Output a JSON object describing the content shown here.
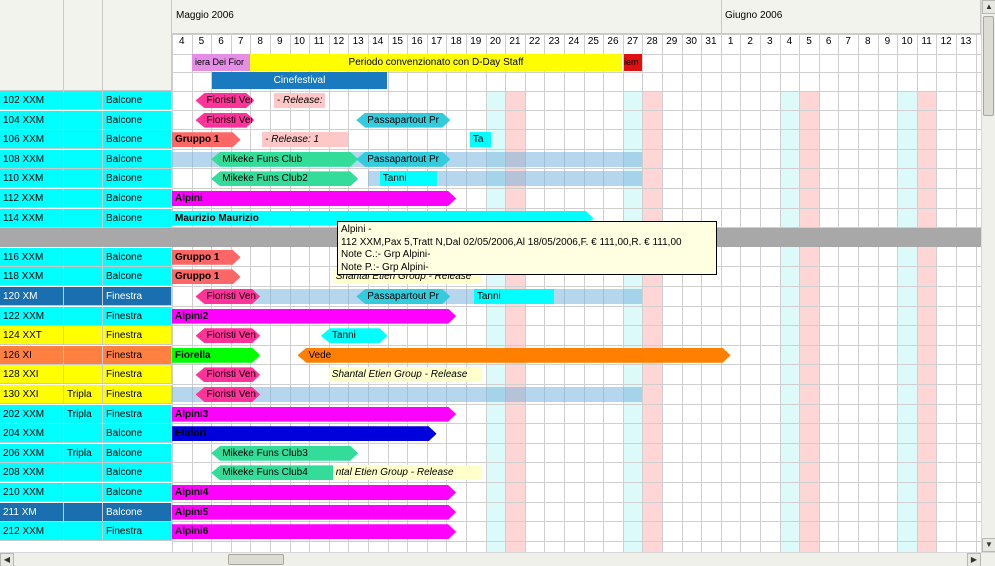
{
  "header": {
    "month1": "Maggio 2006",
    "month2": "Giugno 2006"
  },
  "days": [
    "4",
    "5",
    "6",
    "7",
    "8",
    "9",
    "10",
    "11",
    "12",
    "13",
    "14",
    "15",
    "16",
    "17",
    "18",
    "19",
    "20",
    "21",
    "22",
    "23",
    "24",
    "25",
    "26",
    "27",
    "28",
    "29",
    "30",
    "31",
    "1",
    "2",
    "3",
    "4",
    "5",
    "6",
    "7",
    "8",
    "9",
    "10",
    "11",
    "12",
    "13"
  ],
  "events": {
    "fiera": "iera Dei Fior",
    "periodo": "Periodo convenzionato con D-Day Staff",
    "red": "iem",
    "cinefestival": "Cinefestival"
  },
  "rows": [
    {
      "room": "102 XXM",
      "type": "",
      "view": "Balcone",
      "color": "#00ffff"
    },
    {
      "room": "104 XXM",
      "type": "",
      "view": "Balcone",
      "color": "#00ffff"
    },
    {
      "room": "106 XXM",
      "type": "",
      "view": "Balcone",
      "color": "#00ffff"
    },
    {
      "room": "108 XXM",
      "type": "",
      "view": "Balcone",
      "color": "#00ffff"
    },
    {
      "room": "110 XXM",
      "type": "",
      "view": "Balcone",
      "color": "#00ffff"
    },
    {
      "room": "112 XXM",
      "type": "",
      "view": "Balcone",
      "color": "#00ffff"
    },
    {
      "room": "114 XXM",
      "type": "",
      "view": "Balcone",
      "color": "#00ffff"
    },
    {
      "room": "",
      "type": "",
      "view": "",
      "color": "#a8a8a8"
    },
    {
      "room": "116 XXM",
      "type": "",
      "view": "Balcone",
      "color": "#00ffff"
    },
    {
      "room": "118 XXM",
      "type": "",
      "view": "Balcone",
      "color": "#00ffff"
    },
    {
      "room": "120 XM",
      "type": "",
      "view": "Finestra",
      "color": "#1a6fb0"
    },
    {
      "room": "122 XXM",
      "type": "",
      "view": "Finestra",
      "color": "#00ffff"
    },
    {
      "room": "124 XXT",
      "type": "",
      "view": "Finestra",
      "color": "#ffff00"
    },
    {
      "room": "126 XI",
      "type": "",
      "view": "Finestra",
      "color": "#ff8040"
    },
    {
      "room": "128 XXI",
      "type": "",
      "view": "Finestra",
      "color": "#ffff00"
    },
    {
      "room": "130 XXI",
      "type": "Tripla",
      "view": "Finestra",
      "color": "#ffff00"
    },
    {
      "room": "202 XXM",
      "type": "Tripla",
      "view": "Finestra",
      "color": "#00ffff"
    },
    {
      "room": "204 XXM",
      "type": "",
      "view": "Balcone",
      "color": "#00ffff"
    },
    {
      "room": "206 XXM",
      "type": "Tripla",
      "view": "Balcone",
      "color": "#00ffff"
    },
    {
      "room": "208 XXM",
      "type": "",
      "view": "Balcone",
      "color": "#00ffff"
    },
    {
      "room": "210 XXM",
      "type": "",
      "view": "Balcone",
      "color": "#00ffff"
    },
    {
      "room": "211 XM",
      "type": "",
      "view": "Balcone",
      "color": "#1a6fb0"
    },
    {
      "room": "212 XXM",
      "type": "",
      "view": "Finestra",
      "color": "#00ffff"
    }
  ],
  "bars": [
    {
      "row": 0,
      "label": "Fioristi Ven",
      "color": "#ff3399",
      "style": "tag"
    },
    {
      "row": 0,
      "label": "- Release: 1",
      "color": "#ffc8c8",
      "style": "ghost"
    },
    {
      "row": 1,
      "label": "Fioristi Ven",
      "color": "#ff3399",
      "style": "tag"
    },
    {
      "row": 1,
      "label": "Passapartout Pr",
      "color": "#33ccdd",
      "style": "tag"
    },
    {
      "row": 2,
      "label": "Gruppo 1",
      "color": "#ff6666",
      "style": "bold"
    },
    {
      "row": 2,
      "label": "- Release: 1",
      "color": "#ffc8c8",
      "style": "ghost"
    },
    {
      "row": 2,
      "label": "Ta",
      "color": "#00ffff",
      "style": "plain"
    },
    {
      "row": 3,
      "label": "Mikeke Funs Club",
      "color": "#33dd99",
      "style": "tag"
    },
    {
      "row": 3,
      "label": "Passapartout Pr",
      "color": "#33ccdd",
      "style": "tag"
    },
    {
      "row": 4,
      "label": "Mikeke Funs Club2",
      "color": "#33dd99",
      "style": "tag"
    },
    {
      "row": 4,
      "label": "Tanni",
      "color": "#00ffff",
      "style": "plain"
    },
    {
      "row": 5,
      "label": "Alpini",
      "color": "#ff00ff",
      "style": "bold"
    },
    {
      "row": 6,
      "label": "Maurizio Maurizio",
      "color": "#00ffff",
      "style": "bold"
    },
    {
      "row": 8,
      "label": "Gruppo 1",
      "color": "#ff6666",
      "style": "bold"
    },
    {
      "row": 9,
      "label": "Gruppo 1",
      "color": "#ff6666",
      "style": "bold"
    },
    {
      "row": 9,
      "label": "Shantal Etien Group - Release",
      "color": "#ffffcc",
      "style": "ghost"
    },
    {
      "row": 10,
      "label": "Fioristi Ven",
      "color": "#ff3399",
      "style": "tag"
    },
    {
      "row": 10,
      "label": "Passapartout Pr",
      "color": "#33ccdd",
      "style": "tag"
    },
    {
      "row": 10,
      "label": "Tanni",
      "color": "#00ffff",
      "style": "plain"
    },
    {
      "row": 11,
      "label": "Alpini2",
      "color": "#ff00ff",
      "style": "bold"
    },
    {
      "row": 12,
      "label": "Fioristi Ven",
      "color": "#ff3399",
      "style": "tag"
    },
    {
      "row": 12,
      "label": "Tanni",
      "color": "#00ffff",
      "style": "tag"
    },
    {
      "row": 13,
      "label": "Fiorella",
      "color": "#00ff00",
      "style": "bold"
    },
    {
      "row": 13,
      "label": "Vede",
      "color": "#ff8000",
      "style": "tag"
    },
    {
      "row": 14,
      "label": "Fioristi Ven",
      "color": "#ff3399",
      "style": "tag"
    },
    {
      "row": 14,
      "label": "Shantal Etien Group - Release",
      "color": "#ffffcc",
      "style": "ghost"
    },
    {
      "row": 15,
      "label": "Fioristi Ven",
      "color": "#ff3399",
      "style": "tag"
    },
    {
      "row": 16,
      "label": "Alpini3",
      "color": "#ff00ff",
      "style": "bold"
    },
    {
      "row": 17,
      "label": "Elidori",
      "color": "#0000dd",
      "style": "bold"
    },
    {
      "row": 18,
      "label": "Mikeke Funs Club3",
      "color": "#33dd99",
      "style": "tag"
    },
    {
      "row": 19,
      "label": "Mikeke Funs Club4",
      "color": "#33dd99",
      "style": "tag"
    },
    {
      "row": 19,
      "label": "ntal Etien Group - Release",
      "color": "#ffffcc",
      "style": "ghost"
    },
    {
      "row": 20,
      "label": "Alpini4",
      "color": "#ff00ff",
      "style": "bold"
    },
    {
      "row": 21,
      "label": "Alpini5",
      "color": "#ff00ff",
      "style": "bold"
    },
    {
      "row": 22,
      "label": "Alpini6",
      "color": "#ff00ff",
      "style": "bold"
    }
  ],
  "tooltip": {
    "line1": "Alpini  -",
    "line2": "112 XXM,Pax 5,Tratt N,Dal 02/05/2006,Al 18/05/2006,F. € 111,00,R. € 111,00",
    "line3": "Note C.:- Grp Alpini-",
    "line4": "Note P.:- Grp Alpini-"
  }
}
